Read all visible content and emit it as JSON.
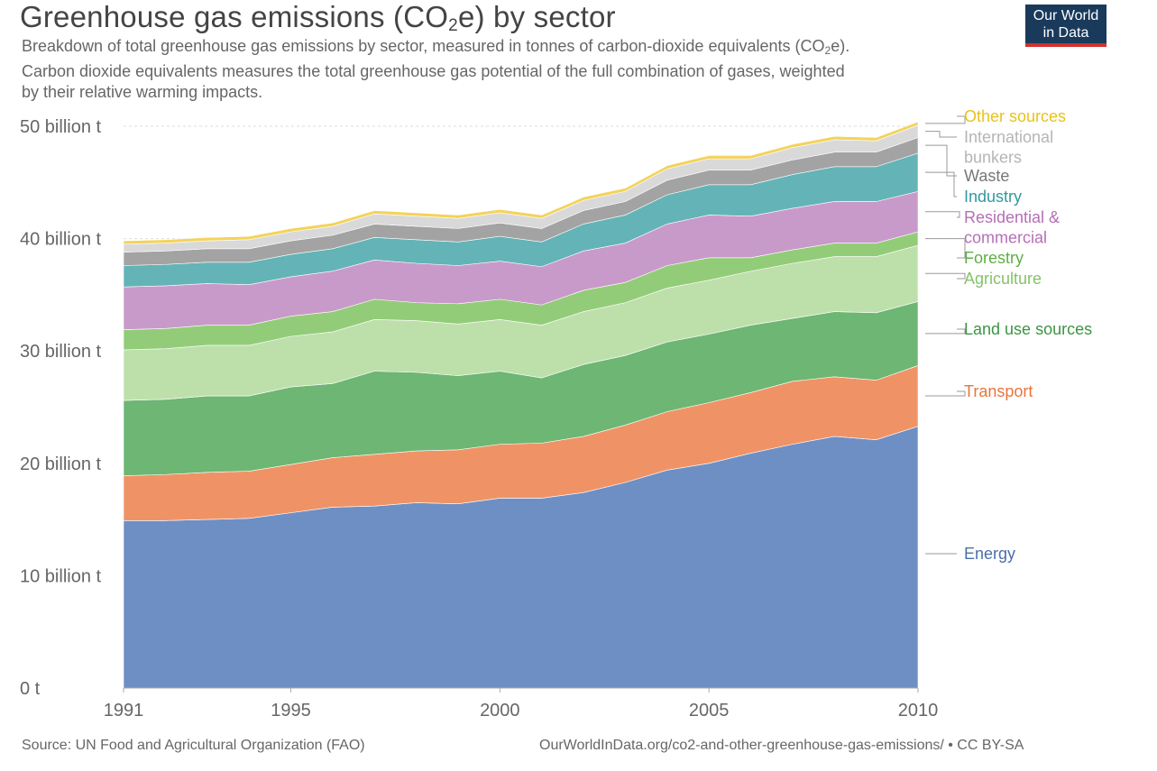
{
  "header": {
    "title_pre": "Greenhouse gas emissions (CO",
    "title_sub": "2",
    "title_post": "e) by sector",
    "subtitle_line1_pre": "Breakdown of total greenhouse gas emissions by sector, measured in tonnes of carbon-dioxide equivalents (CO",
    "subtitle_line1_sub": "2",
    "subtitle_line1_post": "e).",
    "subtitle_line2": "Carbon dioxide equivalents measures the total greenhouse gas potential of the full combination of gases, weighted",
    "subtitle_line3": "by their relative warming impacts."
  },
  "logo": {
    "line1": "Our World",
    "line2": "in Data"
  },
  "footer": {
    "source": "Source: UN Food and Agricultural Organization (FAO)",
    "url": "OurWorldInData.org/co2-and-other-greenhouse-gas-emissions/ • CC BY-SA"
  },
  "colors": {
    "energy": "#6e8fc4",
    "transport": "#ef9366",
    "land_use": "#6db673",
    "agriculture": "#bde0ab",
    "forestry": "#93cc78",
    "residential": "#c89ac9",
    "industry": "#64b3b7",
    "waste": "#a3a3a3",
    "bunkers": "#d9d9d9",
    "other": "#f3d35a"
  },
  "chart_data": {
    "type": "area",
    "stacked": true,
    "title": "Greenhouse gas emissions (CO2e) by sector",
    "ylabel": "tonnes CO2e",
    "x": [
      1991,
      1992,
      1993,
      1994,
      1995,
      1996,
      1997,
      1998,
      1999,
      2000,
      2001,
      2002,
      2003,
      2004,
      2005,
      2006,
      2007,
      2008,
      2009,
      2010
    ],
    "x_ticks": [
      {
        "value": 1991,
        "label": "1991"
      },
      {
        "value": 1995,
        "label": "1995"
      },
      {
        "value": 2000,
        "label": "2000"
      },
      {
        "value": 2005,
        "label": "2005"
      },
      {
        "value": 2010,
        "label": "2010"
      }
    ],
    "y_ticks": [
      {
        "value": 0,
        "label": "0 t"
      },
      {
        "value": 10,
        "label": "10 billion t"
      },
      {
        "value": 20,
        "label": "20 billion t"
      },
      {
        "value": 30,
        "label": "30 billion t"
      },
      {
        "value": 40,
        "label": "40 billion t"
      },
      {
        "value": 50,
        "label": "50 billion t"
      }
    ],
    "ylim": [
      0,
      50
    ],
    "units": "billion t",
    "series": [
      {
        "name": "Energy",
        "key": "energy",
        "values": [
          14.9,
          14.9,
          15.0,
          15.1,
          15.6,
          16.1,
          16.2,
          16.5,
          16.4,
          16.9,
          16.9,
          17.4,
          18.3,
          19.4,
          20.0,
          20.9,
          21.7,
          22.4,
          22.1,
          23.3
        ]
      },
      {
        "name": "Transport",
        "key": "transport",
        "values": [
          4.0,
          4.1,
          4.2,
          4.2,
          4.3,
          4.4,
          4.6,
          4.6,
          4.8,
          4.8,
          4.9,
          5.0,
          5.1,
          5.2,
          5.4,
          5.4,
          5.6,
          5.3,
          5.3,
          5.4
        ]
      },
      {
        "name": "Land use sources",
        "key": "land_use",
        "values": [
          6.7,
          6.7,
          6.8,
          6.7,
          6.9,
          6.6,
          7.4,
          7.0,
          6.6,
          6.5,
          5.8,
          6.4,
          6.2,
          6.2,
          6.1,
          6.0,
          5.6,
          5.8,
          6.0,
          5.7
        ]
      },
      {
        "name": "Agriculture",
        "key": "agriculture",
        "values": [
          4.5,
          4.5,
          4.5,
          4.5,
          4.5,
          4.6,
          4.6,
          4.6,
          4.6,
          4.6,
          4.7,
          4.7,
          4.7,
          4.8,
          4.8,
          4.8,
          4.9,
          4.9,
          5.0,
          5.0
        ]
      },
      {
        "name": "Forestry",
        "key": "forestry",
        "values": [
          1.8,
          1.8,
          1.8,
          1.8,
          1.8,
          1.8,
          1.8,
          1.6,
          1.8,
          1.8,
          1.8,
          1.9,
          1.8,
          2.0,
          2.0,
          1.2,
          1.2,
          1.2,
          1.2,
          1.2
        ]
      },
      {
        "name": "Residential & commercial",
        "key": "residential",
        "values": [
          3.8,
          3.8,
          3.7,
          3.6,
          3.5,
          3.6,
          3.5,
          3.5,
          3.4,
          3.4,
          3.4,
          3.5,
          3.5,
          3.7,
          3.8,
          3.7,
          3.7,
          3.7,
          3.7,
          3.6
        ]
      },
      {
        "name": "Industry",
        "key": "industry",
        "values": [
          1.9,
          1.9,
          1.9,
          2.0,
          2.0,
          2.0,
          2.0,
          2.1,
          2.1,
          2.2,
          2.2,
          2.4,
          2.5,
          2.6,
          2.7,
          2.8,
          3.0,
          3.1,
          3.1,
          3.4
        ]
      },
      {
        "name": "Waste",
        "key": "waste",
        "values": [
          1.2,
          1.2,
          1.2,
          1.2,
          1.2,
          1.2,
          1.2,
          1.2,
          1.2,
          1.2,
          1.2,
          1.2,
          1.2,
          1.3,
          1.3,
          1.3,
          1.3,
          1.3,
          1.3,
          1.4
        ]
      },
      {
        "name": "International bunkers",
        "key": "bunkers",
        "values": [
          0.7,
          0.7,
          0.7,
          0.8,
          0.8,
          0.8,
          0.9,
          0.9,
          0.9,
          0.9,
          0.9,
          0.9,
          0.9,
          1.0,
          1.0,
          1.0,
          1.1,
          1.1,
          1.0,
          1.1
        ]
      },
      {
        "name": "Other sources",
        "key": "other",
        "values": [
          0.3,
          0.3,
          0.3,
          0.3,
          0.3,
          0.3,
          0.3,
          0.3,
          0.3,
          0.3,
          0.3,
          0.3,
          0.3,
          0.3,
          0.3,
          0.3,
          0.3,
          0.3,
          0.3,
          0.3
        ]
      }
    ],
    "legend": [
      {
        "key": "other",
        "lines": [
          "Other sources"
        ]
      },
      {
        "key": "bunkers",
        "lines": [
          "International",
          "bunkers"
        ]
      },
      {
        "key": "waste",
        "lines": [
          "Waste"
        ]
      },
      {
        "key": "industry",
        "lines": [
          "Industry"
        ]
      },
      {
        "key": "residential",
        "lines": [
          "Residential &",
          "commercial"
        ]
      },
      {
        "key": "forestry",
        "lines": [
          "Forestry"
        ]
      },
      {
        "key": "agriculture",
        "lines": [
          "Agriculture"
        ]
      },
      {
        "key": "land_use",
        "lines": [
          "Land use sources"
        ]
      },
      {
        "key": "transport",
        "lines": [
          "Transport"
        ]
      },
      {
        "key": "energy",
        "lines": [
          "Energy"
        ]
      }
    ],
    "legend_position": "right"
  }
}
